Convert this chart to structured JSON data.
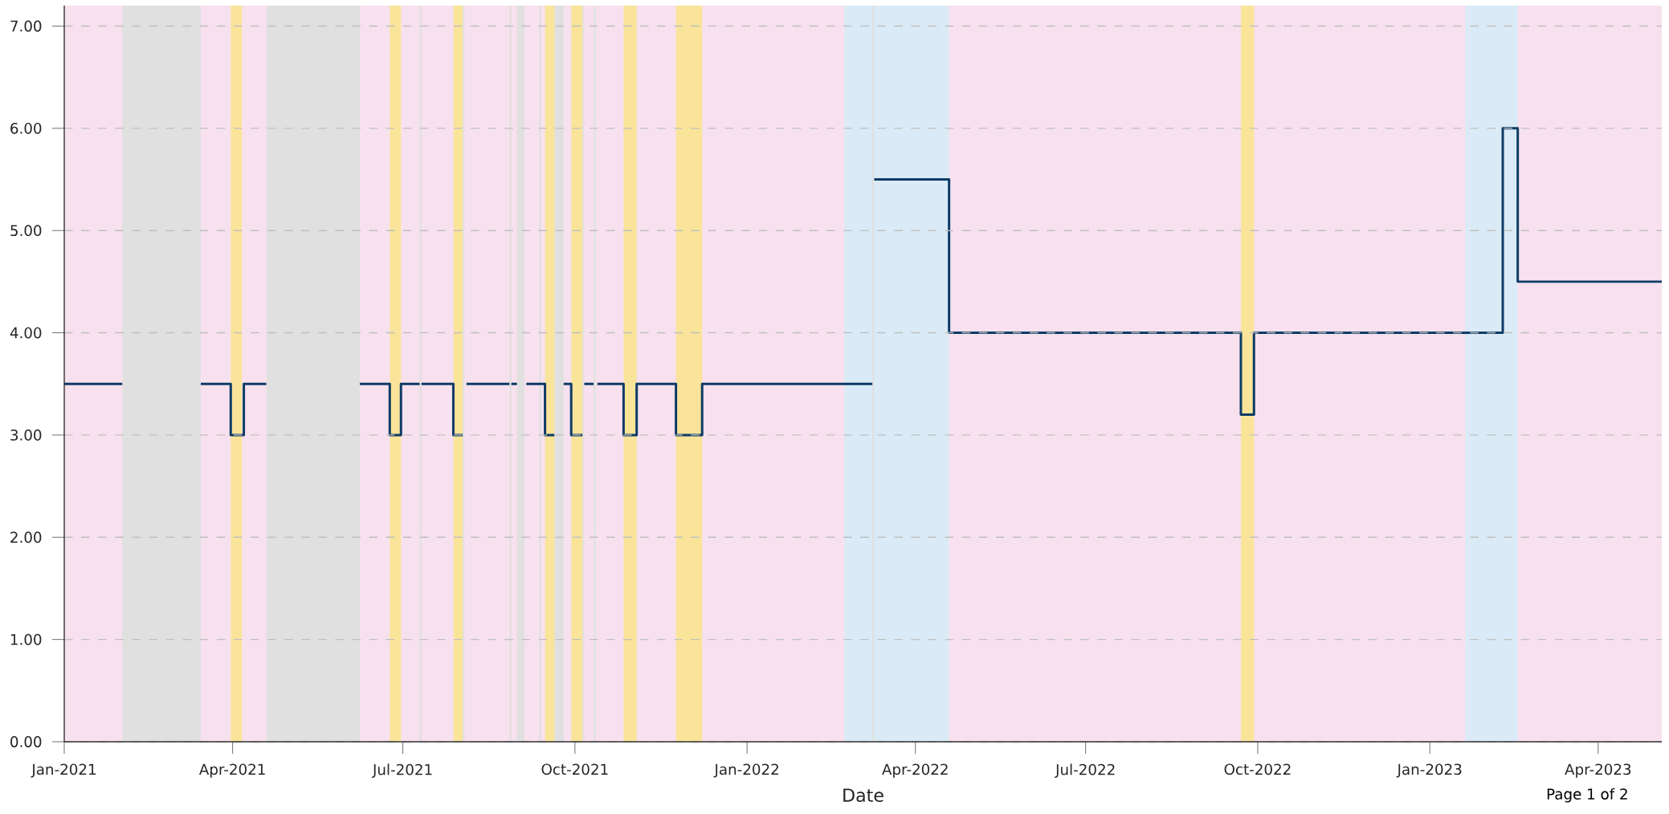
{
  "chart_data": {
    "type": "step",
    "xlabel": "Date",
    "x": [
      "2021-01-01",
      "2021-02-01",
      "2021-03-15",
      "2021-03-31",
      "2021-04-07",
      "2021-04-19",
      "2021-06-08",
      "2021-06-24",
      "2021-06-30",
      "2021-07-10",
      "2021-07-11",
      "2021-07-28",
      "2021-08-02",
      "2021-08-04",
      "2021-08-27",
      "2021-08-28",
      "2021-08-31",
      "2021-09-05",
      "2021-09-15",
      "2021-09-20",
      "2021-09-25",
      "2021-09-29",
      "2021-10-05",
      "2021-10-06",
      "2021-10-11",
      "2021-10-13",
      "2021-10-27",
      "2021-11-03",
      "2021-11-24",
      "2021-12-08",
      "2022-03-09",
      "2022-03-10",
      "2022-04-19",
      "2022-09-22",
      "2022-09-29",
      "2023-02-09",
      "2023-02-17",
      "2023-05-05"
    ],
    "series": [
      {
        "color": "#0d3b66",
        "values": [
          3.5,
          null,
          3.5,
          3.0,
          3.5,
          null,
          3.5,
          3.0,
          3.5,
          null,
          3.5,
          3.0,
          null,
          3.5,
          null,
          3.5,
          null,
          3.5,
          3.0,
          null,
          3.5,
          3.0,
          null,
          3.5,
          null,
          3.5,
          3.0,
          3.5,
          3.0,
          3.5,
          null,
          5.5,
          4.0,
          3.2,
          4.0,
          6.0,
          4.5,
          4.5
        ]
      }
    ],
    "xlim": [
      "2021-01-01",
      "2023-05-05"
    ],
    "xticks": [
      {
        "value": "2021-01-01",
        "label": "Jan-2021"
      },
      {
        "value": "2021-04-01",
        "label": "Apr-2021"
      },
      {
        "value": "2021-07-01",
        "label": "Jul-2021"
      },
      {
        "value": "2021-10-01",
        "label": "Oct-2021"
      },
      {
        "value": "2022-01-01",
        "label": "Jan-2022"
      },
      {
        "value": "2022-04-01",
        "label": "Apr-2022"
      },
      {
        "value": "2022-07-01",
        "label": "Jul-2022"
      },
      {
        "value": "2022-10-01",
        "label": "Oct-2022"
      },
      {
        "value": "2023-01-01",
        "label": "Jan-2023"
      },
      {
        "value": "2023-04-01",
        "label": "Apr-2023"
      }
    ],
    "ylim": [
      0,
      7.2
    ],
    "yticks": [
      {
        "value": 0,
        "label": "0.00"
      },
      {
        "value": 1,
        "label": "1.00"
      },
      {
        "value": 2,
        "label": "2.00"
      },
      {
        "value": 3,
        "label": "3.00"
      },
      {
        "value": 4,
        "label": "4.00"
      },
      {
        "value": 5,
        "label": "5.00"
      },
      {
        "value": 6,
        "label": "6.00"
      },
      {
        "value": 7,
        "label": "7.00"
      }
    ],
    "grid": "y",
    "line_style": "solid",
    "marker": "none",
    "bands": [
      {
        "axis": "x",
        "from": "2021-01-01",
        "to": "2023-05-05",
        "color": "#f8e1ee"
      },
      {
        "axis": "x",
        "from": "2021-02-01",
        "to": "2021-03-15",
        "color": "#e0e0e0"
      },
      {
        "axis": "x",
        "from": "2021-04-19",
        "to": "2021-06-08",
        "color": "#e0e0e0"
      },
      {
        "axis": "x",
        "from": "2021-07-10",
        "to": "2021-07-11",
        "color": "#e0e0e0"
      },
      {
        "axis": "x",
        "from": "2021-08-02",
        "to": "2021-08-03",
        "color": "#e0e0e0"
      },
      {
        "axis": "x",
        "from": "2021-08-27",
        "to": "2021-08-28",
        "color": "#e0e0e0"
      },
      {
        "axis": "x",
        "from": "2021-08-31",
        "to": "2021-09-04",
        "color": "#e0e0e0"
      },
      {
        "axis": "x",
        "from": "2021-09-12",
        "to": "2021-09-13",
        "color": "#e0e0e0"
      },
      {
        "axis": "x",
        "from": "2021-09-20",
        "to": "2021-09-25",
        "color": "#e0e0e0"
      },
      {
        "axis": "x",
        "from": "2021-10-05",
        "to": "2021-10-06",
        "color": "#e0e0e0"
      },
      {
        "axis": "x",
        "from": "2021-10-11",
        "to": "2021-10-12",
        "color": "#e0e0e0"
      },
      {
        "axis": "x",
        "from": "2021-03-31",
        "to": "2021-04-06",
        "color": "#fae49a"
      },
      {
        "axis": "x",
        "from": "2021-06-24",
        "to": "2021-06-30",
        "color": "#fae49a"
      },
      {
        "axis": "x",
        "from": "2021-07-28",
        "to": "2021-08-02",
        "color": "#fae49a"
      },
      {
        "axis": "x",
        "from": "2021-09-15",
        "to": "2021-09-20",
        "color": "#fae49a"
      },
      {
        "axis": "x",
        "from": "2021-09-29",
        "to": "2021-10-05",
        "color": "#fae49a"
      },
      {
        "axis": "x",
        "from": "2021-10-27",
        "to": "2021-11-03",
        "color": "#fae49a"
      },
      {
        "axis": "x",
        "from": "2021-11-24",
        "to": "2021-12-08",
        "color": "#fae49a"
      },
      {
        "axis": "x",
        "from": "2022-02-22",
        "to": "2022-04-19",
        "color": "#daebf7"
      },
      {
        "axis": "x",
        "from": "2022-03-09",
        "to": "2022-03-10",
        "color": "#e0e0e0"
      },
      {
        "axis": "x",
        "from": "2022-09-22",
        "to": "2022-09-29",
        "color": "#fae49a"
      },
      {
        "axis": "x",
        "from": "2023-01-20",
        "to": "2023-02-17",
        "color": "#daebf7"
      }
    ],
    "annotations": [
      "Page 1 of 2"
    ]
  }
}
